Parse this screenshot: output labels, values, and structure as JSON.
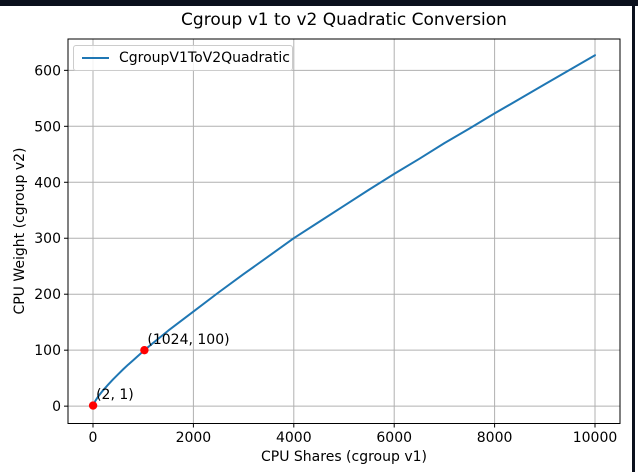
{
  "window": {
    "border_color": "#0b101d"
  },
  "chart_data": {
    "type": "line",
    "title": "Cgroup v1 to v2 Quadratic Conversion",
    "xlabel": "CPU Shares (cgroup v1)",
    "ylabel": "CPU Weight (cgroup v2)",
    "xlim": [
      -498,
      10498
    ],
    "ylim": [
      -31,
      656
    ],
    "xticks": [
      0,
      2000,
      4000,
      6000,
      8000,
      10000
    ],
    "yticks": [
      0,
      100,
      200,
      300,
      400,
      500,
      600
    ],
    "grid": true,
    "grid_color": "#b0b0b0",
    "axis_color": "#000000",
    "legend": {
      "position": "upper left",
      "entries": [
        {
          "label": "CgroupV1ToV2Quadratic",
          "color": "#1f77b4"
        }
      ]
    },
    "series": [
      {
        "name": "CgroupV1ToV2Quadratic",
        "color": "#1f77b4",
        "x": [
          2,
          10,
          25,
          50,
          100,
          150,
          200,
          300,
          400,
          500,
          600,
          700,
          800,
          900,
          1024,
          1200,
          1500,
          2000,
          2500,
          3000,
          3500,
          4000,
          4500,
          5000,
          5500,
          6000,
          6500,
          7000,
          7500,
          8000,
          8500,
          9000,
          9500,
          10000
        ],
        "y": [
          1,
          3.1,
          6,
          10,
          16.7,
          22.6,
          28.2,
          38.4,
          47.9,
          56.9,
          65.6,
          74,
          82.1,
          90,
          100,
          113,
          135,
          169,
          203,
          236,
          268,
          300,
          329,
          358,
          387,
          415,
          442,
          470,
          496,
          523,
          549,
          575,
          601,
          627
        ]
      }
    ],
    "markers": [
      {
        "x": 2,
        "y": 1,
        "color": "#ff0000",
        "label": "(2, 1)"
      },
      {
        "x": 1024,
        "y": 100,
        "color": "#ff0000",
        "label": "(1024, 100)"
      }
    ]
  }
}
